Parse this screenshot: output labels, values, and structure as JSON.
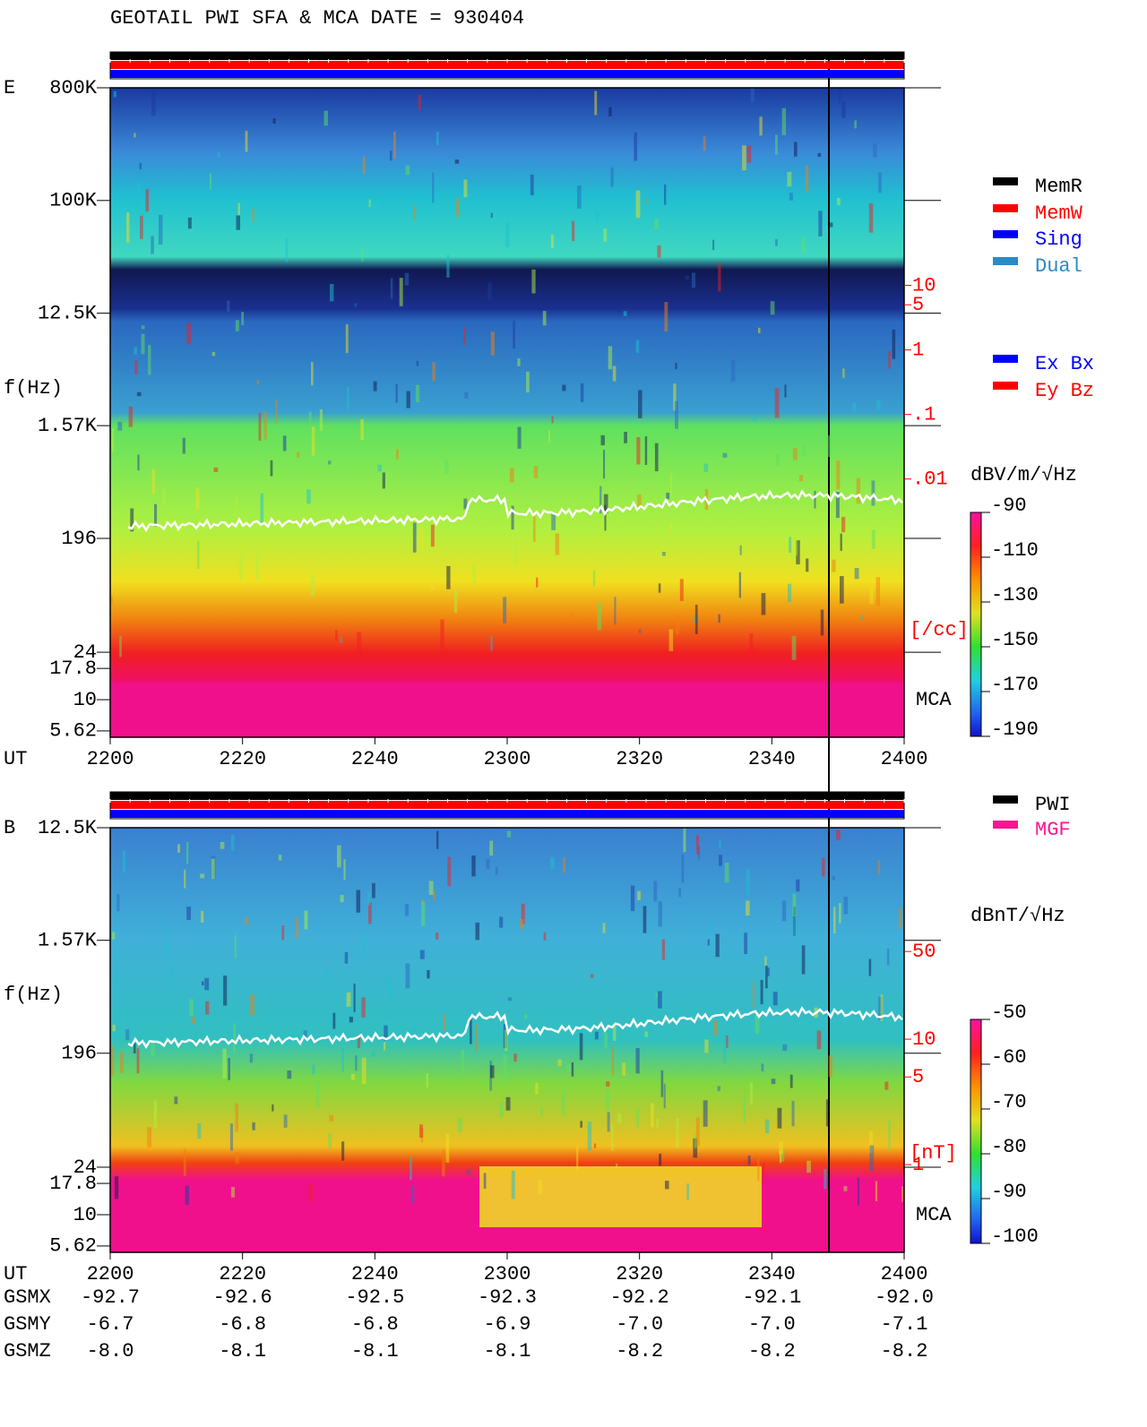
{
  "title": "GEOTAIL  PWI SFA & MCA   DATE = 930404",
  "chart_data": [
    {
      "type": "spectrogram",
      "panel_label": "E",
      "y_label": "f(Hz)",
      "x_label": "UT",
      "log_y": true,
      "ylim": [
        5,
        800000
      ],
      "yticks": [
        {
          "value": 800000,
          "label": "800K"
        },
        {
          "value": 100000,
          "label": "100K"
        },
        {
          "value": 12500,
          "label": "12.5K"
        },
        {
          "value": 1570,
          "label": "1.57K"
        },
        196,
        24,
        17.8,
        10,
        5.62
      ],
      "x_categories": [
        "2200",
        "2220",
        "2240",
        "2300",
        "2320",
        "2340",
        "2400"
      ],
      "mca_label": "MCA",
      "y2_label": "[/cc]",
      "y2lim": [
        1e-06,
        11500
      ],
      "y2ticks": [
        10,
        5,
        1,
        {
          "value": 0.1,
          "label": ".1"
        },
        {
          "value": 0.01,
          "label": ".01"
        }
      ],
      "colorbar": {
        "label": "dBV/m/√Hz",
        "lim": [
          -190,
          -90
        ],
        "ticks": [
          -90,
          -110,
          -130,
          -150,
          -170,
          -190
        ]
      },
      "legend": [
        {
          "name": "MemR",
          "color": "#000000"
        },
        {
          "name": "MemW",
          "color": "#ff0000"
        },
        {
          "name": "Sing",
          "color": "#0000ff"
        },
        {
          "name": "Dual",
          "color": "#2a8ac8"
        },
        {
          "name": "Ex Bx",
          "color": "#0000ff"
        },
        {
          "name": "Ey Bz",
          "color": "#ff0000"
        }
      ]
    },
    {
      "type": "spectrogram",
      "panel_label": "B",
      "y_label": "f(Hz)",
      "x_label": "UT",
      "log_y": true,
      "ylim": [
        5,
        12500
      ],
      "yticks": [
        {
          "value": 12500,
          "label": "12.5K"
        },
        {
          "value": 1570,
          "label": "1.57K"
        },
        196,
        24,
        17.8,
        10,
        5.62
      ],
      "x_categories": [
        "2200",
        "2220",
        "2240",
        "2300",
        "2320",
        "2340",
        "2400"
      ],
      "mca_label": "MCA",
      "y2_label": "[nT]",
      "y2lim": [
        0.2,
        485
      ],
      "y2ticks": [
        50,
        10,
        5,
        1
      ],
      "colorbar": {
        "label": "dBnT/√Hz",
        "lim": [
          -100,
          -50
        ],
        "ticks": [
          -50,
          -60,
          -70,
          -80,
          -90,
          -100
        ]
      },
      "legend": [
        {
          "name": "PWI",
          "color": "#000000"
        },
        {
          "name": "MGF",
          "color": "#ff1493"
        }
      ]
    }
  ],
  "orbit": {
    "rows": [
      {
        "label": "GSMX",
        "values": [
          "-92.7",
          "-92.6",
          "-92.5",
          "-92.3",
          "-92.2",
          "-92.1",
          "-92.0"
        ]
      },
      {
        "label": "GSMY",
        "values": [
          "-6.7",
          "-6.8",
          "-6.8",
          "-6.9",
          "-7.0",
          "-7.0",
          "-7.1"
        ]
      },
      {
        "label": "GSMZ",
        "values": [
          "-8.0",
          "-8.1",
          "-8.1",
          "-8.1",
          "-8.2",
          "-8.2",
          "-8.2"
        ]
      }
    ]
  }
}
